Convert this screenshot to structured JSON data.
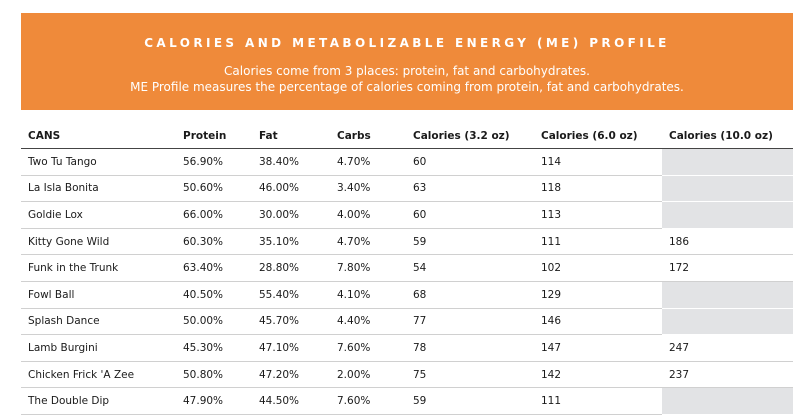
{
  "banner": {
    "title": "CALORIES AND METABOLIZABLE ENERGY (ME) PROFILE",
    "subtitle_line1": "Calories come from 3 places: protein, fat and carbohydrates.",
    "subtitle_line2": "ME Profile measures the percentage of calories coming from protein, fat and carbohydrates.",
    "background_color": "#ef8a3a",
    "text_color": "#ffffff"
  },
  "table": {
    "headers": [
      "CANS",
      "Protein",
      "Fat",
      "Carbs",
      "Calories (3.2 oz)",
      "Calories (6.0 oz)",
      "Calories (10.0 oz)"
    ],
    "empty_cell_color": "#e2e3e5",
    "rows": [
      {
        "name": "Two Tu Tango",
        "protein": "56.90%",
        "fat": "38.40%",
        "carbs": "4.70%",
        "cal_3_2": "60",
        "cal_6_0": "114",
        "cal_10_0": ""
      },
      {
        "name": "La Isla Bonita",
        "protein": "50.60%",
        "fat": "46.00%",
        "carbs": "3.40%",
        "cal_3_2": "63",
        "cal_6_0": "118",
        "cal_10_0": ""
      },
      {
        "name": "Goldie Lox",
        "protein": "66.00%",
        "fat": "30.00%",
        "carbs": "4.00%",
        "cal_3_2": "60",
        "cal_6_0": "113",
        "cal_10_0": ""
      },
      {
        "name": "Kitty Gone Wild",
        "protein": "60.30%",
        "fat": "35.10%",
        "carbs": "4.70%",
        "cal_3_2": "59",
        "cal_6_0": "111",
        "cal_10_0": "186"
      },
      {
        "name": "Funk in the Trunk",
        "protein": "63.40%",
        "fat": "28.80%",
        "carbs": "7.80%",
        "cal_3_2": "54",
        "cal_6_0": "102",
        "cal_10_0": "172"
      },
      {
        "name": "Fowl Ball",
        "protein": "40.50%",
        "fat": "55.40%",
        "carbs": "4.10%",
        "cal_3_2": "68",
        "cal_6_0": "129",
        "cal_10_0": ""
      },
      {
        "name": "Splash Dance",
        "protein": "50.00%",
        "fat": "45.70%",
        "carbs": "4.40%",
        "cal_3_2": "77",
        "cal_6_0": "146",
        "cal_10_0": ""
      },
      {
        "name": "Lamb Burgini",
        "protein": "45.30%",
        "fat": "47.10%",
        "carbs": "7.60%",
        "cal_3_2": "78",
        "cal_6_0": "147",
        "cal_10_0": "247"
      },
      {
        "name": "Chicken Frick 'A Zee",
        "protein": "50.80%",
        "fat": "47.20%",
        "carbs": "2.00%",
        "cal_3_2": "75",
        "cal_6_0": "142",
        "cal_10_0": "237"
      },
      {
        "name": "The Double Dip",
        "protein": "47.90%",
        "fat": "44.50%",
        "carbs": "7.60%",
        "cal_3_2": "59",
        "cal_6_0": "111",
        "cal_10_0": ""
      }
    ]
  }
}
